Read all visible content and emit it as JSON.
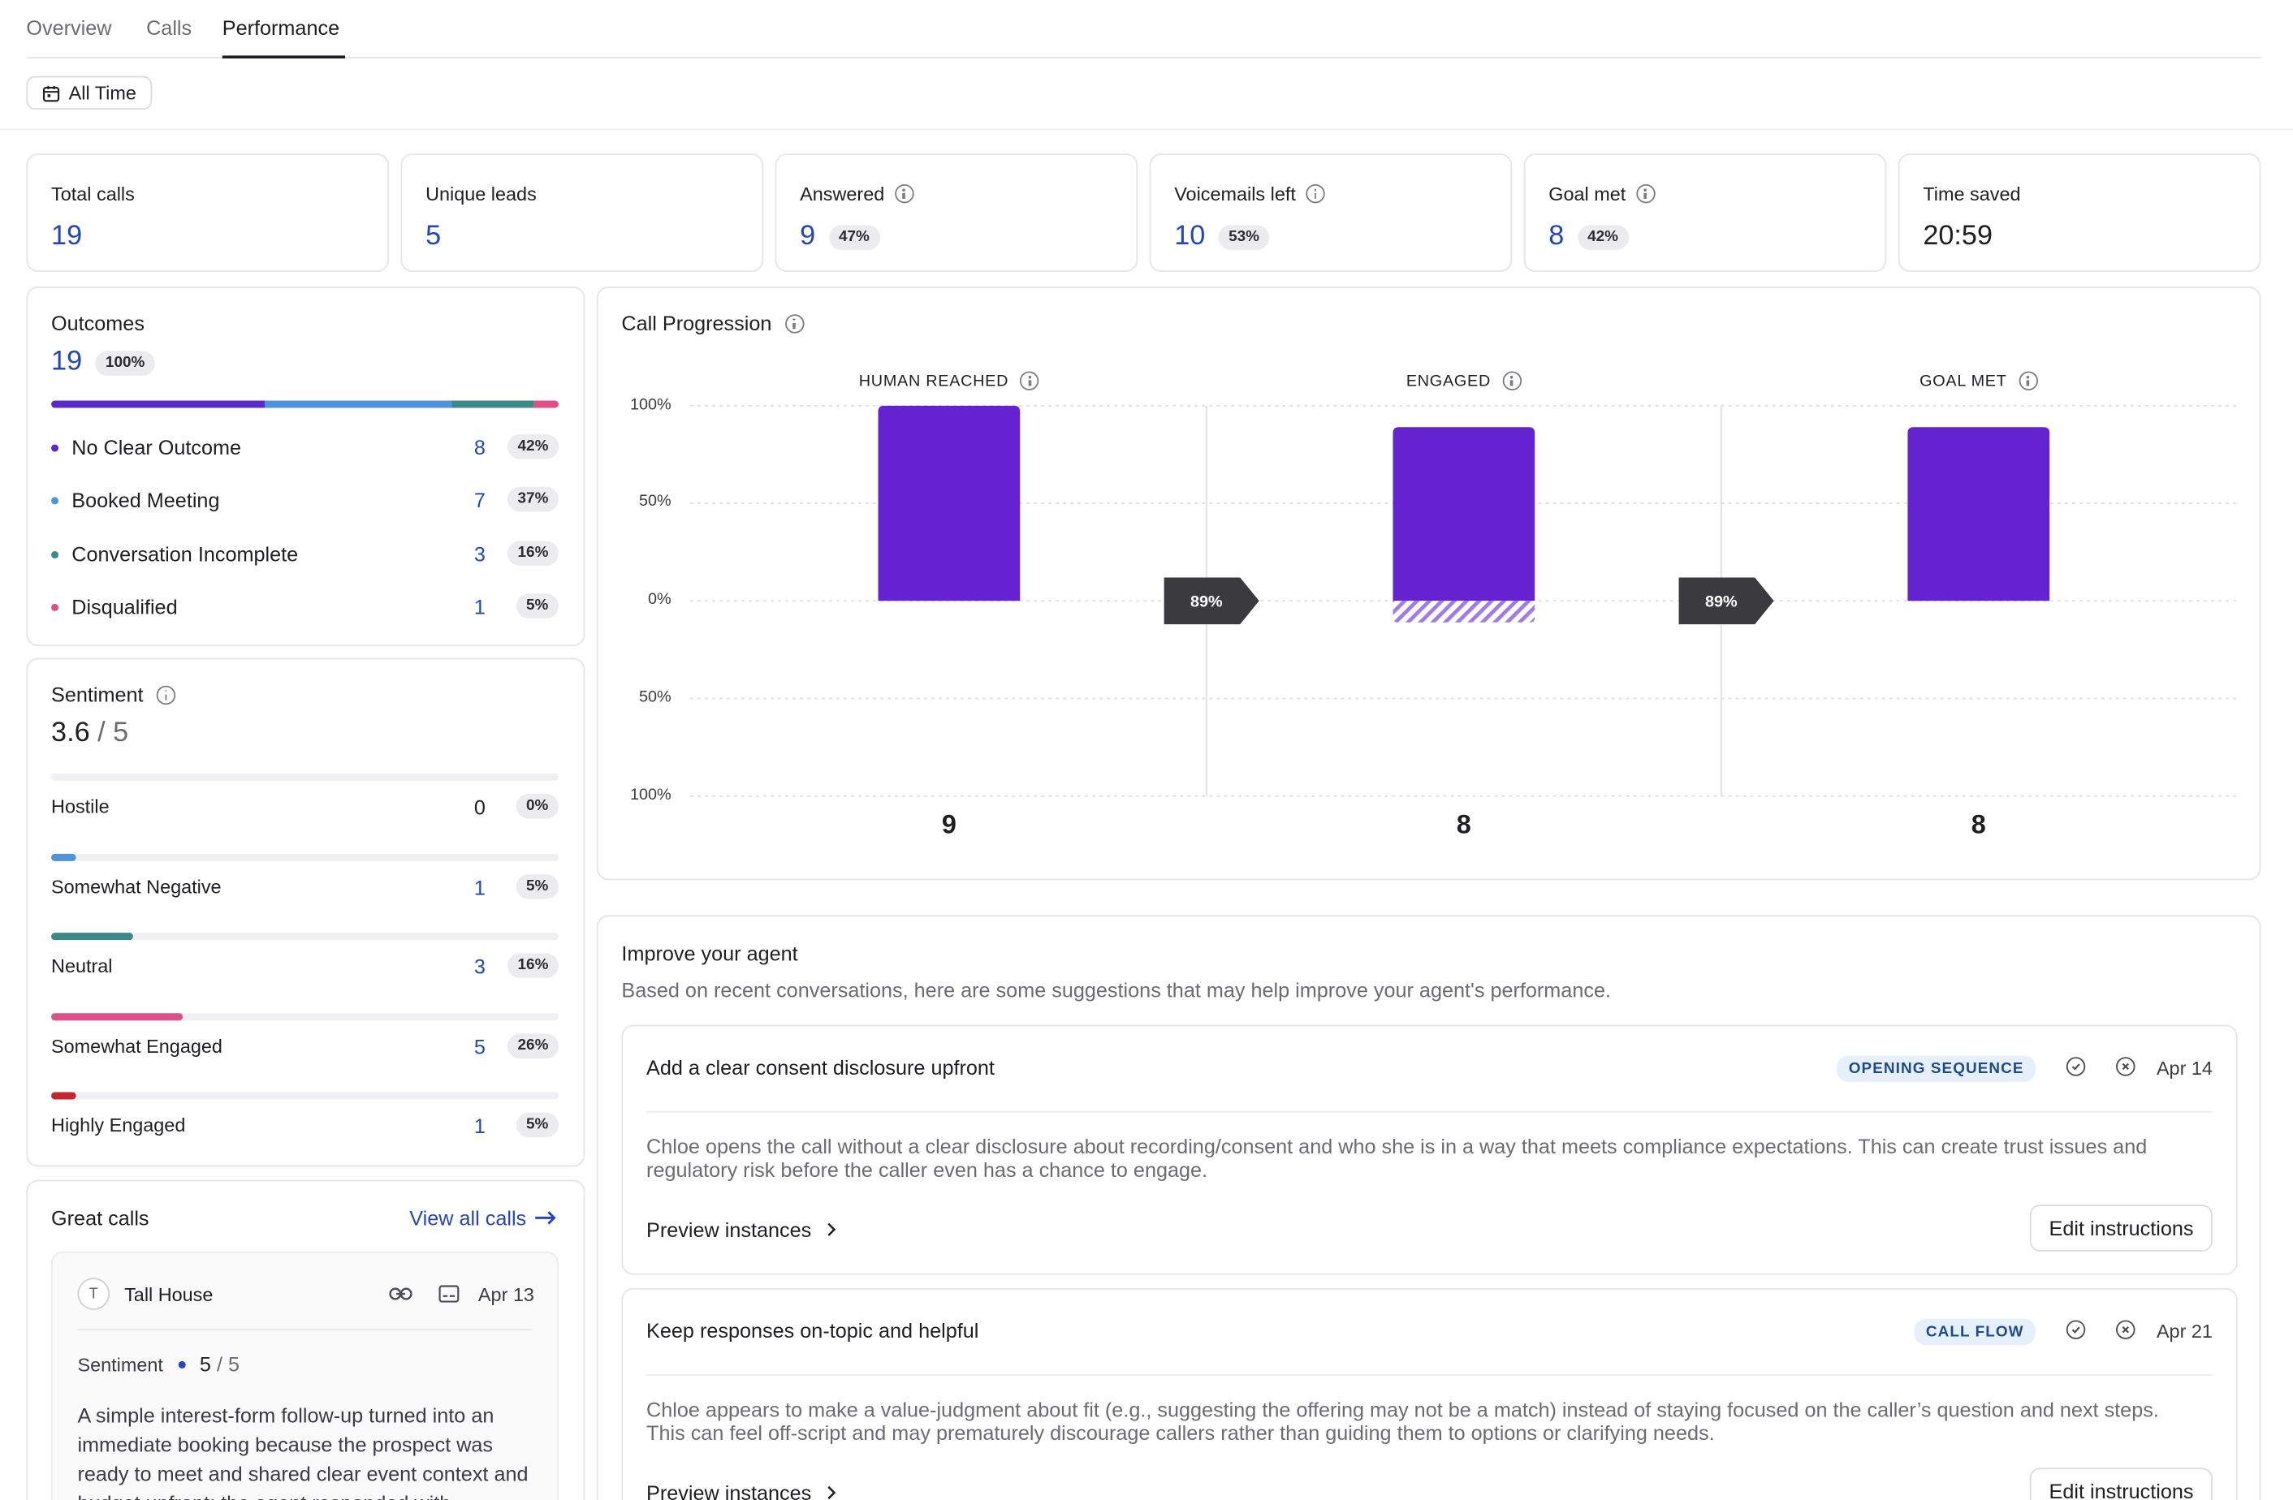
{
  "tabs": [
    "Overview",
    "Calls",
    "Performance"
  ],
  "filter": {
    "label": "All Time"
  },
  "stats": [
    {
      "label": "Total calls",
      "value": "19",
      "pct": "",
      "info": false
    },
    {
      "label": "Unique leads",
      "value": "5",
      "pct": "",
      "info": false
    },
    {
      "label": "Answered",
      "value": "9",
      "pct": "47%",
      "info": true
    },
    {
      "label": "Voicemails left",
      "value": "10",
      "pct": "53%",
      "info": true
    },
    {
      "label": "Goal met",
      "value": "8",
      "pct": "42%",
      "info": true
    },
    {
      "label": "Time saved",
      "value": "20:59",
      "pct": "",
      "info": false
    }
  ],
  "outcomes": {
    "title": "Outcomes",
    "total": "19",
    "total_pct": "100%",
    "items": [
      {
        "label": "No Clear Outcome",
        "count": "8",
        "pct": "42%",
        "color": "#5b2bc9",
        "fraction": 0.42
      },
      {
        "label": "Booked Meeting",
        "count": "7",
        "pct": "37%",
        "color": "#4f93d8",
        "fraction": 0.37
      },
      {
        "label": "Conversation Incomplete",
        "count": "3",
        "pct": "16%",
        "color": "#3c8a88",
        "fraction": 0.16
      },
      {
        "label": "Disqualified",
        "count": "1",
        "pct": "5%",
        "color": "#dd4f86",
        "fraction": 0.05
      }
    ]
  },
  "sentiment": {
    "title": "Sentiment",
    "score": "3.6",
    "max": "5",
    "items": [
      {
        "label": "Hostile",
        "count": "0",
        "pct": "0%",
        "color": "#cfcfd4",
        "fraction": 0
      },
      {
        "label": "Somewhat Negative",
        "count": "1",
        "pct": "5%",
        "color": "#4f93d8",
        "fraction": 0.05
      },
      {
        "label": "Neutral",
        "count": "3",
        "pct": "16%",
        "color": "#3c8a88",
        "fraction": 0.16
      },
      {
        "label": "Somewhat Engaged",
        "count": "5",
        "pct": "26%",
        "color": "#dd4f86",
        "fraction": 0.26
      },
      {
        "label": "Highly Engaged",
        "count": "1",
        "pct": "5%",
        "color": "#c4262e",
        "fraction": 0.05
      }
    ]
  },
  "great_calls": {
    "title": "Great calls",
    "view_all": "View all calls",
    "call": {
      "avatar": "T",
      "name": "Tall House",
      "date": "Apr 13",
      "sentiment_label": "Sentiment",
      "score": "5",
      "max": "5",
      "summary": "A simple interest-form follow-up turned into an immediate booking because the prospect was ready to meet and shared clear event context and budget upfront; the agent responded with"
    }
  },
  "chart_data": {
    "type": "bar",
    "title": "Call Progression",
    "categories": [
      "HUMAN REACHED",
      "ENGAGED",
      "GOAL MET"
    ],
    "values_pct": [
      100,
      89,
      89
    ],
    "below_pct": [
      0,
      11,
      0
    ],
    "counts": [
      "9",
      "8",
      "8"
    ],
    "conversions": [
      "89%",
      "89%"
    ],
    "y_ticks": [
      "100%",
      "50%",
      "0%",
      "50%",
      "100%"
    ],
    "colors": {
      "bar": "#6422d0",
      "hatch": "#a07ae6",
      "marker": "#3b3b3f"
    },
    "grid": true
  },
  "improve": {
    "title": "Improve your agent",
    "subtitle": "Based on recent conversations, here are some suggestions that may help improve your agent's performance.",
    "suggestions": [
      {
        "title": "Add a clear consent disclosure upfront",
        "tag": "OPENING SEQUENCE",
        "date": "Apr 14",
        "body": "Chloe opens the call without a clear disclosure about recording/consent and who she is in a way that meets compliance expectations. This can create trust issues and regulatory risk before the caller even has a chance to engage.",
        "preview": "Preview instances",
        "edit": "Edit instructions"
      },
      {
        "title": "Keep responses on-topic and helpful",
        "tag": "CALL FLOW",
        "date": "Apr 21",
        "body": "Chloe appears to make a value-judgment about fit (e.g., suggesting the offering may not be a match) instead of staying focused on the caller’s question and next steps. This can feel off-script and may prematurely discourage callers rather than guiding them to options or clarifying needs.",
        "preview": "Preview instances",
        "edit": "Edit instructions"
      }
    ]
  }
}
